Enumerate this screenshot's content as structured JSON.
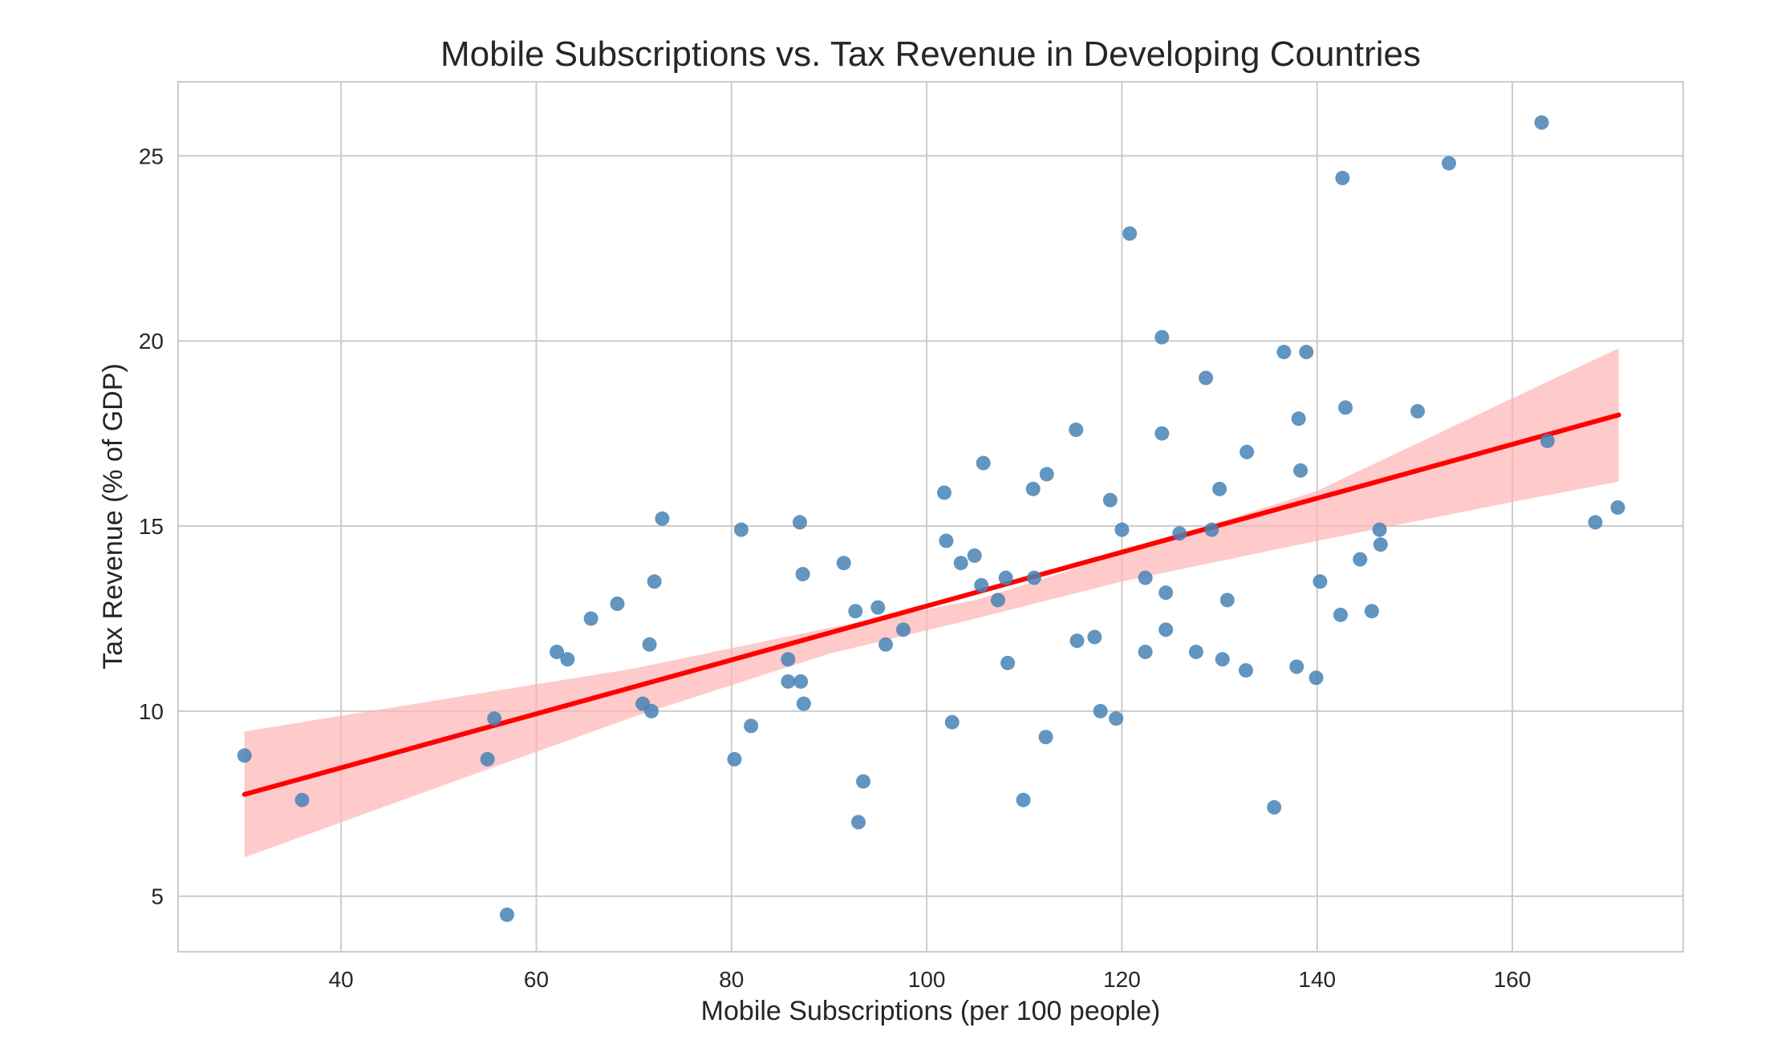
{
  "chart_data": {
    "type": "scatter",
    "title": "Mobile Subscriptions vs. Tax Revenue in Developing Countries",
    "xlabel": "Mobile Subscriptions (per 100 people)",
    "ylabel": "Tax Revenue (% of GDP)",
    "xlim": [
      23.3,
      177.5
    ],
    "ylim": [
      3.5,
      27.0
    ],
    "xticks": [
      40,
      60,
      80,
      100,
      120,
      140,
      160
    ],
    "yticks": [
      5,
      10,
      15,
      20,
      25
    ],
    "grid": true,
    "colors": {
      "points": "#4682b4",
      "regression_line": "#ff0000",
      "confidence_band": "#ffb3b3",
      "grid": "#cccccc",
      "axes_edge": "#cccccc"
    },
    "regression": {
      "x": [
        30.1,
        170.9
      ],
      "y": [
        7.75,
        18.0
      ]
    },
    "confidence_band": {
      "x": [
        30.1,
        50,
        70,
        90,
        105,
        120,
        140,
        160,
        170.9
      ],
      "lower": [
        6.05,
        7.95,
        9.85,
        11.55,
        12.5,
        13.5,
        14.6,
        15.65,
        16.2
      ],
      "upper": [
        9.45,
        10.3,
        11.15,
        12.25,
        13.0,
        14.25,
        15.95,
        18.45,
        19.8
      ]
    },
    "points": [
      {
        "x": 30.1,
        "y": 8.8
      },
      {
        "x": 36.0,
        "y": 7.6
      },
      {
        "x": 55.0,
        "y": 8.7
      },
      {
        "x": 55.7,
        "y": 9.8
      },
      {
        "x": 57.0,
        "y": 4.5
      },
      {
        "x": 62.1,
        "y": 11.6
      },
      {
        "x": 63.2,
        "y": 11.4
      },
      {
        "x": 65.6,
        "y": 12.5
      },
      {
        "x": 68.3,
        "y": 12.9
      },
      {
        "x": 70.9,
        "y": 10.2
      },
      {
        "x": 71.6,
        "y": 11.8
      },
      {
        "x": 71.8,
        "y": 10.0
      },
      {
        "x": 72.1,
        "y": 13.5
      },
      {
        "x": 72.9,
        "y": 15.2
      },
      {
        "x": 80.3,
        "y": 8.7
      },
      {
        "x": 81.0,
        "y": 14.9
      },
      {
        "x": 82.0,
        "y": 9.6
      },
      {
        "x": 85.8,
        "y": 11.4
      },
      {
        "x": 85.8,
        "y": 10.8
      },
      {
        "x": 87.0,
        "y": 15.1
      },
      {
        "x": 87.1,
        "y": 10.8
      },
      {
        "x": 87.3,
        "y": 13.7
      },
      {
        "x": 87.4,
        "y": 10.2
      },
      {
        "x": 91.5,
        "y": 14.0
      },
      {
        "x": 92.7,
        "y": 12.7
      },
      {
        "x": 93.0,
        "y": 7.0
      },
      {
        "x": 93.5,
        "y": 8.1
      },
      {
        "x": 95.0,
        "y": 12.8
      },
      {
        "x": 95.8,
        "y": 11.8
      },
      {
        "x": 97.6,
        "y": 12.2
      },
      {
        "x": 101.8,
        "y": 15.9
      },
      {
        "x": 102.0,
        "y": 14.6
      },
      {
        "x": 102.6,
        "y": 9.7
      },
      {
        "x": 103.5,
        "y": 14.0
      },
      {
        "x": 104.9,
        "y": 14.2
      },
      {
        "x": 105.6,
        "y": 13.4
      },
      {
        "x": 105.8,
        "y": 16.7
      },
      {
        "x": 107.3,
        "y": 13.0
      },
      {
        "x": 108.1,
        "y": 13.6
      },
      {
        "x": 108.3,
        "y": 11.3
      },
      {
        "x": 109.9,
        "y": 7.6
      },
      {
        "x": 110.9,
        "y": 16.0
      },
      {
        "x": 111.0,
        "y": 13.6
      },
      {
        "x": 112.2,
        "y": 9.3
      },
      {
        "x": 112.3,
        "y": 16.4
      },
      {
        "x": 115.3,
        "y": 17.6
      },
      {
        "x": 115.4,
        "y": 11.9
      },
      {
        "x": 117.2,
        "y": 12.0
      },
      {
        "x": 117.8,
        "y": 10.0
      },
      {
        "x": 118.8,
        "y": 15.7
      },
      {
        "x": 119.4,
        "y": 9.8
      },
      {
        "x": 120.0,
        "y": 14.9
      },
      {
        "x": 120.8,
        "y": 22.9
      },
      {
        "x": 122.4,
        "y": 11.6
      },
      {
        "x": 122.4,
        "y": 13.6
      },
      {
        "x": 124.1,
        "y": 20.1
      },
      {
        "x": 124.1,
        "y": 17.5
      },
      {
        "x": 124.5,
        "y": 12.2
      },
      {
        "x": 124.5,
        "y": 13.2
      },
      {
        "x": 125.9,
        "y": 14.8
      },
      {
        "x": 127.6,
        "y": 11.6
      },
      {
        "x": 128.6,
        "y": 19.0
      },
      {
        "x": 129.2,
        "y": 14.9
      },
      {
        "x": 130.0,
        "y": 16.0
      },
      {
        "x": 130.3,
        "y": 11.4
      },
      {
        "x": 130.8,
        "y": 13.0
      },
      {
        "x": 132.7,
        "y": 11.1
      },
      {
        "x": 132.8,
        "y": 17.0
      },
      {
        "x": 135.6,
        "y": 7.4
      },
      {
        "x": 136.6,
        "y": 19.7
      },
      {
        "x": 137.9,
        "y": 11.2
      },
      {
        "x": 138.1,
        "y": 17.9
      },
      {
        "x": 138.3,
        "y": 16.5
      },
      {
        "x": 138.9,
        "y": 19.7
      },
      {
        "x": 139.9,
        "y": 10.9
      },
      {
        "x": 140.3,
        "y": 13.5
      },
      {
        "x": 142.4,
        "y": 12.6
      },
      {
        "x": 142.6,
        "y": 24.4
      },
      {
        "x": 142.9,
        "y": 18.2
      },
      {
        "x": 144.4,
        "y": 14.1
      },
      {
        "x": 145.6,
        "y": 12.7
      },
      {
        "x": 146.4,
        "y": 14.9
      },
      {
        "x": 146.5,
        "y": 14.5
      },
      {
        "x": 150.3,
        "y": 18.1
      },
      {
        "x": 153.5,
        "y": 24.8
      },
      {
        "x": 163.0,
        "y": 25.9
      },
      {
        "x": 163.6,
        "y": 17.3
      },
      {
        "x": 168.5,
        "y": 15.1
      },
      {
        "x": 170.8,
        "y": 15.5
      }
    ]
  }
}
